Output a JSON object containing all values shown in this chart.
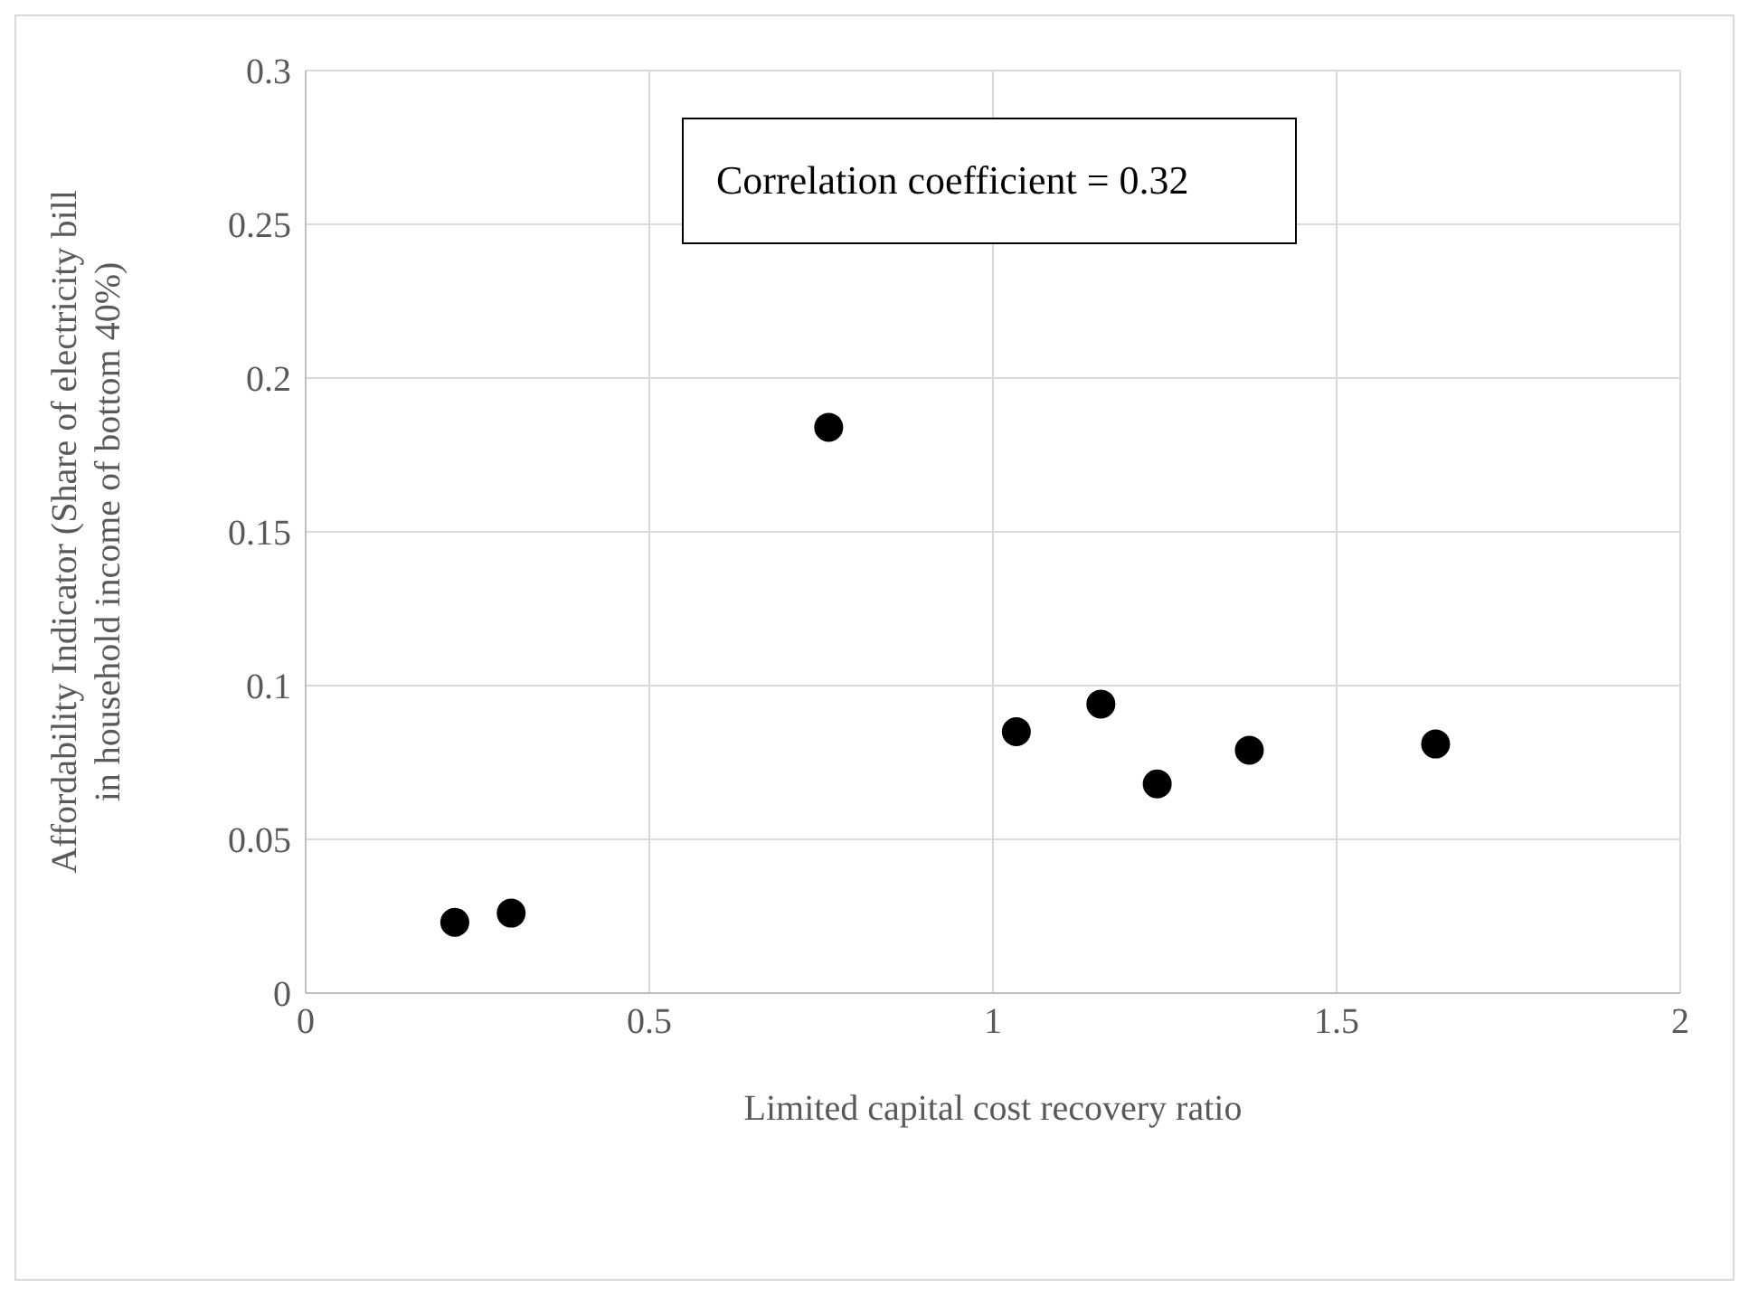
{
  "chart_data": {
    "type": "scatter",
    "xlabel": "Limited capital cost recovery ratio",
    "ylabel": "Affordability Indicator (Share of electricity bill in household income of bottom 40%)",
    "x": [
      0.217,
      0.299,
      0.761,
      1.034,
      1.157,
      1.239,
      1.373,
      1.644
    ],
    "values": [
      0.023,
      0.026,
      0.184,
      0.085,
      0.094,
      0.068,
      0.079,
      0.081
    ],
    "color": "#000000",
    "marker": "circle",
    "xlim": [
      0,
      2
    ],
    "xticks": [
      0,
      0.5,
      1,
      1.5,
      2
    ],
    "ylim": [
      0,
      0.3
    ],
    "yticks": [
      0,
      0.05,
      0.1,
      0.15,
      0.2,
      0.25,
      0.3
    ],
    "grid": true,
    "annotations": [
      "Correlation coefficient = 0.32"
    ]
  }
}
